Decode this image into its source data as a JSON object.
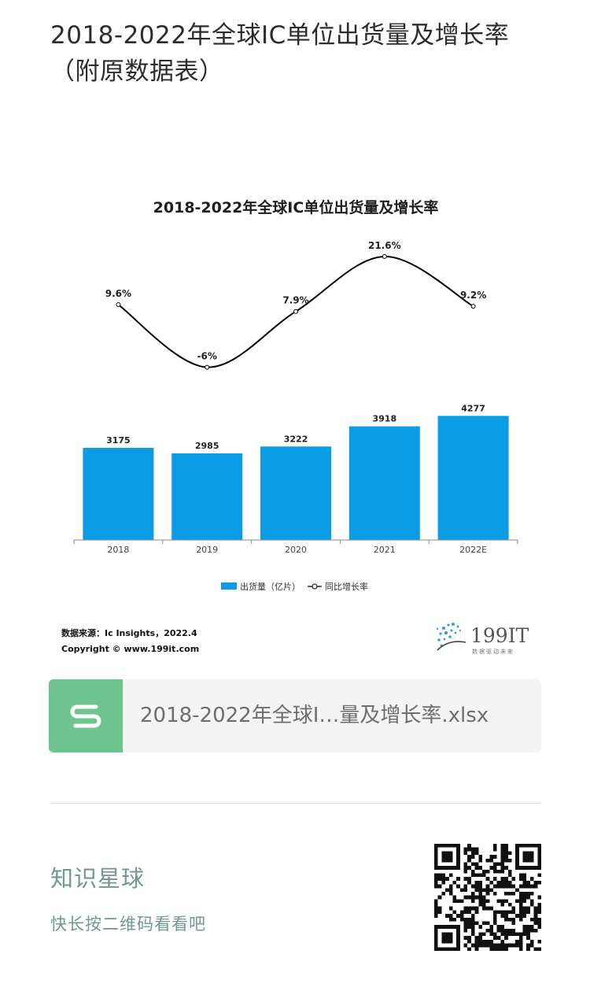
{
  "page": {
    "title": "2018-2022年全球IC单位出货量及增长率（附原数据表）"
  },
  "chart_data": {
    "type": "bar",
    "title": "2018-2022年全球IC单位出货量及增长率",
    "categories": [
      "2018",
      "2019",
      "2020",
      "2021",
      "2022E"
    ],
    "series": [
      {
        "name": "出货量（亿片）",
        "type": "bar",
        "values": [
          3175,
          2985,
          3222,
          3918,
          4277
        ],
        "color": "#0c9ce6"
      },
      {
        "name": "同比增长率",
        "type": "line",
        "values": [
          9.6,
          -6,
          7.9,
          21.6,
          9.2
        ],
        "labels": [
          "9.6%",
          "-6%",
          "7.9%",
          "21.6%",
          "9.2%"
        ],
        "color": "#000000"
      }
    ],
    "legend_position": "bottom",
    "source_text": "数据来源：Ic Insights，2022.4",
    "copyright_text": "Copyright © www.199it.com",
    "brand": {
      "name": "199IT",
      "tagline": "数据驱动未来",
      "color": "#555555"
    }
  },
  "attachment": {
    "icon": "spreadsheet-icon",
    "icon_letter": "S",
    "filename": "2018-2022年全球I…量及增长率.xlsx"
  },
  "qr_section": {
    "title": "知识星球",
    "subtitle": "快长按二维码看看吧",
    "icon": "qr-code-icon"
  }
}
